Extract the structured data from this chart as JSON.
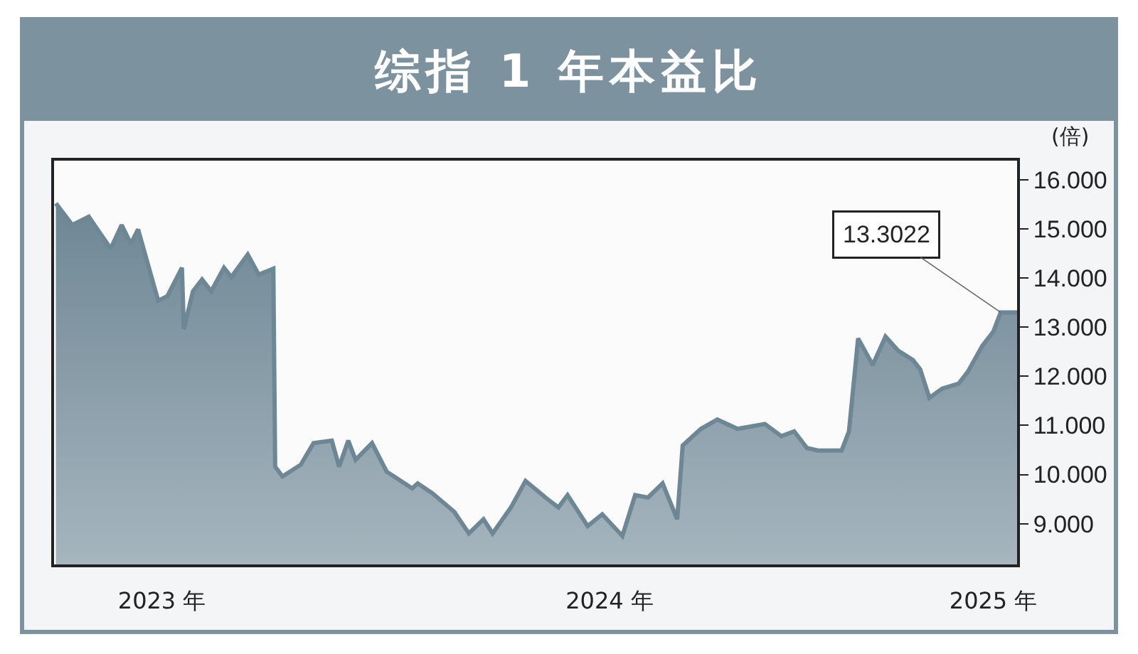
{
  "chart_data": {
    "type": "area",
    "title": "综指 1 年本益比",
    "ylabel": "(倍)",
    "x": [
      "2023-09-03",
      "2023-09-12",
      "2023-09-21",
      "2023-09-25",
      "2023-10-03",
      "2023-10-09",
      "2023-10-14",
      "2023-10-18",
      "2023-10-29",
      "2023-11-03",
      "2023-11-11",
      "2023-11-12",
      "2023-11-17",
      "2023-11-22",
      "2023-11-27",
      "2023-12-04",
      "2023-12-08",
      "2023-12-17",
      "2023-12-23",
      "2023-12-31",
      "2024-01-01",
      "2024-01-05",
      "2024-01-15",
      "2024-01-22",
      "2024-02-01",
      "2024-02-05",
      "2024-02-10",
      "2024-02-14",
      "2024-02-23",
      "2024-03-02",
      "2024-03-16",
      "2024-03-19",
      "2024-03-27",
      "2024-04-08",
      "2024-04-16",
      "2024-04-24",
      "2024-04-29",
      "2024-05-09",
      "2024-05-17",
      "2024-05-28",
      "2024-06-04",
      "2024-06-09",
      "2024-06-20",
      "2024-06-28",
      "2024-07-09",
      "2024-07-16",
      "2024-07-23",
      "2024-07-31",
      "2024-08-08",
      "2024-08-11",
      "2024-08-21",
      "2024-08-30",
      "2024-09-10",
      "2024-09-25",
      "2024-10-04",
      "2024-10-11",
      "2024-10-18",
      "2024-10-24",
      "2024-11-06",
      "2024-11-10",
      "2024-11-15",
      "2024-11-23",
      "2024-11-30",
      "2024-12-07",
      "2024-12-15",
      "2024-12-19",
      "2024-12-24",
      "2024-12-31",
      "2025-01-09",
      "2025-01-14",
      "2025-01-22",
      "2025-01-28",
      "2025-02-01",
      "2025-02-10"
    ],
    "series": [
      {
        "color": "#6e8795",
        "values": [
          15.52,
          15.08,
          15.25,
          15.03,
          14.6,
          15.08,
          14.7,
          14.99,
          13.54,
          13.63,
          14.21,
          12.96,
          13.73,
          13.97,
          13.73,
          14.21,
          14.02,
          14.48,
          14.07,
          14.19,
          10.16,
          9.96,
          10.2,
          10.64,
          10.69,
          10.16,
          10.69,
          10.3,
          10.64,
          10.06,
          9.72,
          9.82,
          9.62,
          9.24,
          8.8,
          9.09,
          8.8,
          9.33,
          9.87,
          9.53,
          9.33,
          9.58,
          8.95,
          9.19,
          8.75,
          9.58,
          9.53,
          9.82,
          9.09,
          10.59,
          10.93,
          11.12,
          10.93,
          11.03,
          10.78,
          10.88,
          10.54,
          10.49,
          10.49,
          10.88,
          12.77,
          12.23,
          12.81,
          12.52,
          12.33,
          12.14,
          11.56,
          11.75,
          11.85,
          12.09,
          12.62,
          12.91,
          13.3,
          13.3
        ]
      }
    ],
    "annotations": [
      {
        "text": "13.3022",
        "x": "2025-02-01",
        "y": 13.3022
      }
    ],
    "xlim": [
      "2023-09-02",
      "2025-02-10"
    ],
    "xticks": [
      {
        "value": "2023-10-31",
        "label": "2023 年"
      },
      {
        "value": "2024-07-02",
        "label": "2024 年"
      },
      {
        "value": "2025-01-28",
        "label": "2025 年"
      }
    ],
    "ylim": [
      8.17,
      16.39
    ],
    "yticks": [
      {
        "value": 9,
        "label": "9.000"
      },
      {
        "value": 10,
        "label": "10.000"
      },
      {
        "value": 11,
        "label": "11.000"
      },
      {
        "value": 12,
        "label": "12.000"
      },
      {
        "value": 13,
        "label": "13.000"
      },
      {
        "value": 14,
        "label": "14.000"
      },
      {
        "value": 15,
        "label": "15.000"
      },
      {
        "value": 16,
        "label": "16.000"
      }
    ],
    "grid": false
  }
}
